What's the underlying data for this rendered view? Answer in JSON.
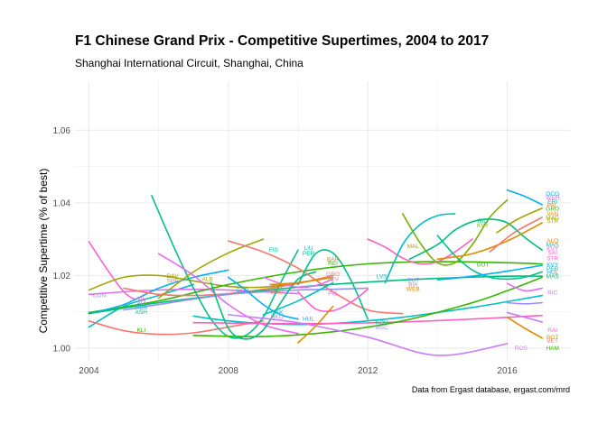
{
  "chart_data": {
    "type": "line",
    "title": "F1 Chinese Grand Prix - Competitive Supertimes, 2004 to 2017",
    "subtitle": "Shanghai International Circuit, Shanghai, China",
    "caption": "Data from Ergast database, ergast.com/mrd",
    "xlabel": "",
    "ylabel": "Competitive Supertime (% of best)",
    "xlim": [
      2003.6,
      2017.8
    ],
    "ylim": [
      0.9965,
      1.0735
    ],
    "xticks": [
      2004,
      2008,
      2012,
      2016
    ],
    "xtick_labels": [
      "2004",
      "2008",
      "2012",
      "2016"
    ],
    "yticks": [
      1.0,
      1.02,
      1.04,
      1.06
    ],
    "ytick_labels": [
      "1.00",
      "1.02",
      "1.04",
      "1.06"
    ],
    "grid": true,
    "legend": "none",
    "series": [
      {
        "color": "#00bfc4",
        "x": [
          2004,
          2005,
          2006,
          2007
        ],
        "y": [
          1.0058,
          1.0115,
          1.0145,
          1.0175
        ]
      },
      {
        "color": "#f8766d",
        "x": [
          2004,
          2005,
          2006,
          2007,
          2008,
          2009
        ],
        "y": [
          1.0075,
          1.0048,
          1.0038,
          1.0042,
          1.0058,
          1.0075
        ]
      },
      {
        "color": "#e76bf3",
        "x": [
          2004,
          2005,
          2006,
          2007,
          2008,
          2009,
          2010
        ],
        "y": [
          1.0148,
          1.0155,
          1.016,
          1.0162,
          1.016,
          1.0155,
          1.015
        ]
      },
      {
        "color": "#fd61d1",
        "x": [
          2004,
          2004.5,
          2005,
          2005.3
        ],
        "y": [
          1.0293,
          1.022,
          1.0155,
          1.0135
        ]
      },
      {
        "color": "#a3a500",
        "x": [
          2004,
          2005,
          2006,
          2007,
          2008,
          2009,
          2010,
          2011
        ],
        "y": [
          1.016,
          1.0195,
          1.02,
          1.0185,
          1.017,
          1.0168,
          1.018,
          1.0195
        ]
      },
      {
        "color": "#39b600",
        "x": [
          2004,
          2006,
          2008,
          2010,
          2012,
          2014,
          2016,
          2017
        ],
        "y": [
          1.0098,
          1.013,
          1.0175,
          1.021,
          1.0232,
          1.0238,
          1.0235,
          1.0232
        ]
      },
      {
        "color": "#00b0f6",
        "x": [
          2004,
          2005,
          2006,
          2007,
          2008
        ],
        "y": [
          1.0095,
          1.012,
          1.0165,
          1.0195,
          1.0215
        ]
      },
      {
        "color": "#f8766d",
        "x": [
          2005,
          2006,
          2007,
          2008,
          2009,
          2010,
          2011
        ],
        "y": [
          1.0165,
          1.0148,
          1.0145,
          1.015,
          1.0162,
          1.0178,
          1.02
        ]
      },
      {
        "color": "#00bf7d",
        "x": [
          2004,
          2006,
          2008,
          2010,
          2012,
          2014,
          2016,
          2017
        ],
        "y": [
          1.0095,
          1.0125,
          1.0148,
          1.0168,
          1.0182,
          1.0192,
          1.0198,
          1.0198
        ]
      },
      {
        "color": "#9590ff",
        "x": [
          2005,
          2006,
          2007,
          2008,
          2009,
          2010,
          2011,
          2012
        ],
        "y": [
          1.0105,
          1.012,
          1.0135,
          1.0148,
          1.0155,
          1.016,
          1.0162,
          1.0165
        ]
      },
      {
        "color": "#00c08b",
        "x": [
          2005.8,
          2006.5,
          2007,
          2007.5,
          2008,
          2008.5,
          2009,
          2009.5,
          2010
        ],
        "y": [
          1.042,
          1.0265,
          1.0165,
          1.008,
          1.0032,
          1.0035,
          1.0085,
          1.018,
          1.027
        ]
      },
      {
        "color": "#a3a500",
        "x": [
          2006,
          2007,
          2008,
          2009
        ],
        "y": [
          1.0138,
          1.021,
          1.0262,
          1.03
        ]
      },
      {
        "color": "#e76bf3",
        "x": [
          2006,
          2007,
          2008,
          2009,
          2010
        ],
        "y": [
          1.026,
          1.02,
          1.012,
          1.0065,
          1.004
        ]
      },
      {
        "color": "#00bfc4",
        "x": [
          2007,
          2008,
          2009,
          2010,
          2011,
          2012,
          2013,
          2014,
          2015,
          2016,
          2017
        ],
        "y": [
          1.0088,
          1.0075,
          1.0068,
          1.0065,
          1.0068,
          1.0075,
          1.0085,
          1.0098,
          1.0112,
          1.0128,
          1.0145
        ]
      },
      {
        "color": "#ff62bc",
        "x": [
          2007,
          2009,
          2011,
          2013,
          2015,
          2017
        ],
        "y": [
          1.007,
          1.0068,
          1.0068,
          1.0072,
          1.008,
          1.009
        ]
      },
      {
        "color": "#39b600",
        "x": [
          2007,
          2009,
          2011,
          2013,
          2015,
          2016,
          2017
        ],
        "y": [
          1.0035,
          1.0032,
          1.0045,
          1.0075,
          1.0125,
          1.0158,
          1.0195
        ]
      },
      {
        "color": "#00bf7d",
        "x": [
          2007.5,
          2008,
          2008.5,
          2009,
          2009.5,
          2010,
          2010.5
        ],
        "y": [
          1.018,
          1.0055,
          1.0025,
          1.005,
          1.0125,
          1.019,
          1.021
        ]
      },
      {
        "color": "#f8766d",
        "x": [
          2008,
          2009,
          2010,
          2011,
          2012,
          2013
        ],
        "y": [
          1.0295,
          1.0265,
          1.022,
          1.0155,
          1.0105,
          1.0095
        ]
      },
      {
        "color": "#00b0f6",
        "x": [
          2008,
          2008.5,
          2009,
          2009.5,
          2010
        ],
        "y": [
          1.0195,
          1.016,
          1.012,
          1.0092,
          1.008
        ]
      },
      {
        "color": "#e76bf3",
        "x": [
          2009,
          2009.5,
          2010,
          2010.5,
          2011
        ],
        "y": [
          1.0195,
          1.0178,
          1.0168,
          1.0172,
          1.019
        ]
      },
      {
        "color": "#00bfc4",
        "x": [
          2009,
          2010,
          2011
        ],
        "y": [
          1.0092,
          1.013,
          1.018
        ]
      },
      {
        "color": "#00c08b",
        "x": [
          2010,
          2010.5,
          2011,
          2011.5,
          2012
        ],
        "y": [
          1.0175,
          1.026,
          1.0262,
          1.019,
          1.008
        ]
      },
      {
        "color": "#fd61d1",
        "x": [
          2010,
          2010.5,
          2011,
          2011.5,
          2012
        ],
        "y": [
          1.0155,
          1.0108,
          1.0103,
          1.0125,
          1.0162
        ]
      },
      {
        "color": "#e58700",
        "x": [
          2010,
          2010.5,
          2011
        ],
        "y": [
          1.0015,
          1.006,
          1.0115
        ]
      },
      {
        "color": "#e58700",
        "x": [
          2009.2,
          2010,
          2010.8
        ],
        "y": [
          1.0175,
          1.018,
          1.0192
        ]
      },
      {
        "color": "#ff62bc",
        "x": [
          2012,
          2012.5,
          2013,
          2013.5,
          2014,
          2014.5,
          2015
        ],
        "y": [
          1.03,
          1.0278,
          1.0248,
          1.0232,
          1.0238,
          1.0265,
          1.03
        ]
      },
      {
        "color": "#00bfc4",
        "x": [
          2012.5,
          2013,
          2013.5,
          2014,
          2014.5
        ],
        "y": [
          1.018,
          1.0285,
          1.034,
          1.0365,
          1.037
        ]
      },
      {
        "color": "#7cae00",
        "x": [
          2013,
          2013.5,
          2014,
          2014.5,
          2015,
          2015.5,
          2016
        ],
        "y": [
          1.037,
          1.029,
          1.0235,
          1.0235,
          1.0285,
          1.036,
          1.0408
        ]
      },
      {
        "color": "#00bf7d",
        "x": [
          2013.2,
          2014,
          2014.5,
          2015,
          2015.5,
          2016,
          2016.5,
          2017
        ],
        "y": [
          1.0245,
          1.0285,
          1.0325,
          1.0348,
          1.0355,
          1.0345,
          1.0305,
          1.027
        ]
      },
      {
        "color": "#00c08b",
        "x": [
          2014,
          2014.5,
          2015,
          2015.5,
          2016,
          2016.5,
          2017
        ],
        "y": [
          1.031,
          1.0255,
          1.0215,
          1.0195,
          1.019,
          1.0195,
          1.021
        ]
      },
      {
        "color": "#e58700",
        "x": [
          2014,
          2015,
          2016,
          2017
        ],
        "y": [
          1.0245,
          1.026,
          1.0295,
          1.0345
        ]
      },
      {
        "color": "#00b0f6",
        "x": [
          2014,
          2015,
          2016,
          2017
        ],
        "y": [
          1.0188,
          1.0198,
          1.0212,
          1.0228
        ]
      },
      {
        "color": "#a3a500",
        "x": [
          2015.7,
          2016.3,
          2017
        ],
        "y": [
          1.0318,
          1.0355,
          1.0385
        ]
      },
      {
        "color": "#f8766d",
        "x": [
          2015.5,
          2016.2,
          2017
        ],
        "y": [
          1.0265,
          1.0318,
          1.036
        ]
      },
      {
        "color": "#00b0f6",
        "x": [
          2016,
          2016.5,
          2017
        ],
        "y": [
          1.0435,
          1.0418,
          1.0395
        ]
      },
      {
        "color": "#e76bf3",
        "x": [
          2016,
          2016.5,
          2017
        ],
        "y": [
          1.0178,
          1.0158,
          1.0165
        ]
      },
      {
        "color": "#9590ff",
        "x": [
          2016,
          2016.5,
          2017
        ],
        "y": [
          1.0125,
          1.0122,
          1.0125
        ]
      },
      {
        "color": "#e58700",
        "x": [
          2016,
          2016.5,
          2017
        ],
        "y": [
          1.0085,
          1.0055,
          1.0028
        ]
      },
      {
        "color": "#c77cff",
        "x": [
          2008,
          2010,
          2012,
          2014,
          2016
        ],
        "y": [
          1.0092,
          1.007,
          1.003,
          0.998,
          1.0012
        ]
      },
      {
        "color": "#c77cff",
        "x": [
          2016,
          2016.5,
          2017
        ],
        "y": [
          1.0098,
          1.0085,
          1.0072
        ]
      }
    ],
    "annotations": [
      {
        "text": "CON",
        "x": 2004.3,
        "y": 1.014,
        "color": "#9590ff"
      },
      {
        "text": "KLI",
        "x": 2005.5,
        "y": 1.0045,
        "color": "#39b600"
      },
      {
        "text": "VIL",
        "x": 2005.5,
        "y": 1.0132,
        "color": "#fd61d1"
      },
      {
        "text": "PIZ",
        "x": 2005.5,
        "y": 1.0119,
        "color": "#9590ff"
      },
      {
        "text": "RSS",
        "x": 2005.5,
        "y": 1.0106,
        "color": "#00bfc4"
      },
      {
        "text": "ASH",
        "x": 2005.5,
        "y": 1.0094,
        "color": "#00bf7d"
      },
      {
        "text": "DAV",
        "x": 2006.4,
        "y": 1.0193,
        "color": "#a3a500"
      },
      {
        "text": "SPE",
        "x": 2006.4,
        "y": 1.018,
        "color": "#f8766d"
      },
      {
        "text": "ALB",
        "x": 2007.4,
        "y": 1.0185,
        "color": "#a3a500"
      },
      {
        "text": "GLO",
        "x": 2008.4,
        "y": 1.0155,
        "color": "#00b0f6"
      },
      {
        "text": "FIS",
        "x": 2009.3,
        "y": 1.0265,
        "color": "#00c08b"
      },
      {
        "text": "SUT",
        "x": 2009.4,
        "y": 1.0162,
        "color": "#e58700"
      },
      {
        "text": "BOU",
        "x": 2009.4,
        "y": 1.015,
        "color": "#e58700"
      },
      {
        "text": "NAK",
        "x": 2009.4,
        "y": 1.0093,
        "color": "#00bfc4"
      },
      {
        "text": "HKO",
        "x": 2009.4,
        "y": 1.008,
        "color": "#e76bf3"
      },
      {
        "text": "LIU",
        "x": 2010.3,
        "y": 1.027,
        "color": "#00bfc4"
      },
      {
        "text": "PER",
        "x": 2010.3,
        "y": 1.0255,
        "color": "#00c08b"
      },
      {
        "text": "HUL",
        "x": 2010.3,
        "y": 1.0075,
        "color": "#00b0f6"
      },
      {
        "text": "BAR",
        "x": 2011.0,
        "y": 1.024,
        "color": "#e58700"
      },
      {
        "text": "REI",
        "x": 2011.0,
        "y": 1.0228,
        "color": "#39b600"
      },
      {
        "text": "GRO",
        "x": 2011.0,
        "y": 1.0198,
        "color": "#f8766d"
      },
      {
        "text": "VEV",
        "x": 2011.0,
        "y": 1.0185,
        "color": "#ff62bc"
      },
      {
        "text": "PIC",
        "x": 2011.0,
        "y": 1.0145,
        "color": "#e76bf3"
      },
      {
        "text": "LVS",
        "x": 2012.4,
        "y": 1.0192,
        "color": "#00bfc4"
      },
      {
        "text": "KOV",
        "x": 2012.4,
        "y": 1.0065,
        "color": "#00bf7d"
      },
      {
        "text": "MSC",
        "x": 2012.4,
        "y": 1.0052,
        "color": "#9590ff"
      },
      {
        "text": "MAL",
        "x": 2013.3,
        "y": 1.0275,
        "color": "#a3a500"
      },
      {
        "text": "GUT",
        "x": 2013.3,
        "y": 1.0182,
        "color": "#9590ff"
      },
      {
        "text": "BIA",
        "x": 2013.3,
        "y": 1.017,
        "color": "#f8766d"
      },
      {
        "text": "WEB",
        "x": 2013.3,
        "y": 1.0158,
        "color": "#e58700"
      },
      {
        "text": "GIO",
        "x": 2015.3,
        "y": 1.0345,
        "color": "#00bf7d"
      },
      {
        "text": "KVY",
        "x": 2015.3,
        "y": 1.0333,
        "color": "#7cae00"
      },
      {
        "text": "GUT",
        "x": 2015.3,
        "y": 1.0225,
        "color": "#39b600"
      },
      {
        "text": "OCO",
        "x": 2017.3,
        "y": 1.042,
        "color": "#00b0f6"
      },
      {
        "text": "WEH",
        "x": 2017.3,
        "y": 1.041,
        "color": "#e76bf3"
      },
      {
        "text": "ERI",
        "x": 2017.3,
        "y": 1.0399,
        "color": "#00bfc4"
      },
      {
        "text": "PAL",
        "x": 2017.3,
        "y": 1.0389,
        "color": "#e58700"
      },
      {
        "text": "GRO",
        "x": 2017.3,
        "y": 1.0378,
        "color": "#39b600"
      },
      {
        "text": "VAN",
        "x": 2017.3,
        "y": 1.0365,
        "color": "#e58700"
      },
      {
        "text": "MAG",
        "x": 2017.3,
        "y": 1.0354,
        "color": "#a3a500"
      },
      {
        "text": "STR",
        "x": 2017.3,
        "y": 1.0345,
        "color": "#a3a500"
      },
      {
        "text": "ALO",
        "x": 2017.3,
        "y": 1.029,
        "color": "#e58700"
      },
      {
        "text": "MAS",
        "x": 2017.3,
        "y": 1.0279,
        "color": "#00bfc4"
      },
      {
        "text": "KVY",
        "x": 2017.3,
        "y": 1.0268,
        "color": "#e76bf3"
      },
      {
        "text": "SAI",
        "x": 2017.3,
        "y": 1.0257,
        "color": "#ff62bc"
      },
      {
        "text": "STR",
        "x": 2017.3,
        "y": 1.0242,
        "color": "#fd61d1"
      },
      {
        "text": "KVY",
        "x": 2017.3,
        "y": 1.0225,
        "color": "#00b0f6"
      },
      {
        "text": "PER",
        "x": 2017.3,
        "y": 1.0214,
        "color": "#00bfc4"
      },
      {
        "text": "HUL",
        "x": 2017.3,
        "y": 1.0203,
        "color": "#00b0f6"
      },
      {
        "text": "MAS",
        "x": 2017.3,
        "y": 1.0192,
        "color": "#00bf7d"
      },
      {
        "text": "RIC",
        "x": 2017.3,
        "y": 1.0148,
        "color": "#c77cff"
      },
      {
        "text": "RAI",
        "x": 2017.3,
        "y": 1.0045,
        "color": "#fd61d1"
      },
      {
        "text": "BOT",
        "x": 2017.3,
        "y": 1.0025,
        "color": "#e58700"
      },
      {
        "text": "VET",
        "x": 2017.3,
        "y": 1.0015,
        "color": "#f8766d"
      },
      {
        "text": "HAM",
        "x": 2017.3,
        "y": 0.9995,
        "color": "#39b600"
      },
      {
        "text": "ROS",
        "x": 2016.4,
        "y": 0.9995,
        "color": "#c77cff"
      }
    ]
  }
}
